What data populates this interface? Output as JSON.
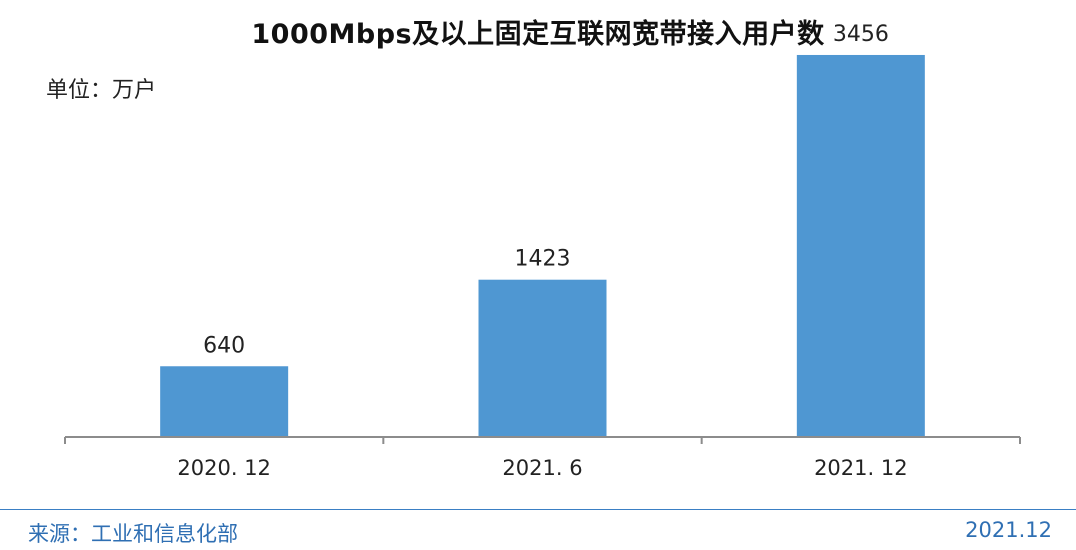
{
  "chart_data": {
    "type": "bar",
    "title": "1000Mbps及以上固定互联网宽带接入用户数",
    "unit_label": "单位：万户",
    "xlabel": "",
    "ylabel": "",
    "categories": [
      "2020. 12",
      "2021. 6",
      "2021. 12"
    ],
    "values": [
      640,
      1423,
      3456
    ],
    "ylim": [
      0,
      3700
    ],
    "grid": false,
    "legend": "none",
    "bar_color": "#4f97d2",
    "axis_color": "#8c8c8c"
  },
  "footer": {
    "source": "来源：工业和信息化部",
    "date": "2021.12",
    "color": "#2f6fb3"
  }
}
